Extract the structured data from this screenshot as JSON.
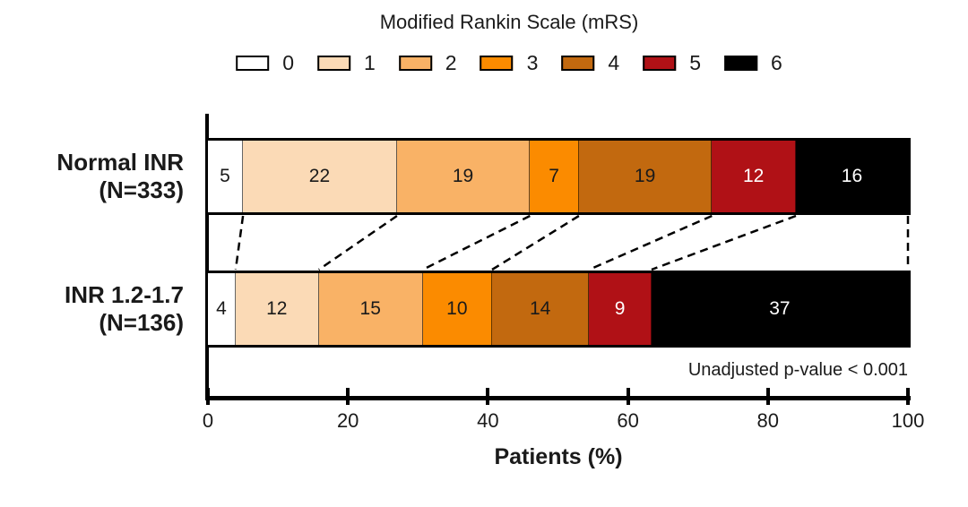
{
  "chart_data": {
    "type": "bar",
    "orientation": "horizontal",
    "stacked": true,
    "title": "Modified Rankin Scale (mRS)",
    "xlabel": "Patients (%)",
    "xlim": [
      0,
      100
    ],
    "x_ticks": [
      0,
      20,
      40,
      60,
      80,
      100
    ],
    "grid": false,
    "legend_position": "top",
    "legend": {
      "entries": [
        {
          "label": "0",
          "color": "#FFFFFF",
          "text_color": "#1a1a1a"
        },
        {
          "label": "1",
          "color": "#FBDAB6",
          "text_color": "#1a1a1a"
        },
        {
          "label": "2",
          "color": "#F9B266",
          "text_color": "#1a1a1a"
        },
        {
          "label": "3",
          "color": "#FB8B00",
          "text_color": "#1a1a1a"
        },
        {
          "label": "4",
          "color": "#C2690F",
          "text_color": "#1a1a1a"
        },
        {
          "label": "5",
          "color": "#B01116",
          "text_color": "#FFFFFF"
        },
        {
          "label": "6",
          "color": "#000000",
          "text_color": "#FFFFFF"
        }
      ]
    },
    "series": [
      {
        "name": "Normal INR",
        "n_label": "(N=333)",
        "values": [
          5,
          22,
          19,
          7,
          19,
          12,
          16
        ]
      },
      {
        "name": "INR 1.2-1.7",
        "n_label": "(N=136)",
        "values": [
          4,
          12,
          15,
          10,
          14,
          9,
          37
        ]
      }
    ],
    "annotation": "Unadjusted p-value < 0.001",
    "connector_lines": "dashed lines join cumulative segment boundaries of the two bars, including the 100% edge"
  }
}
